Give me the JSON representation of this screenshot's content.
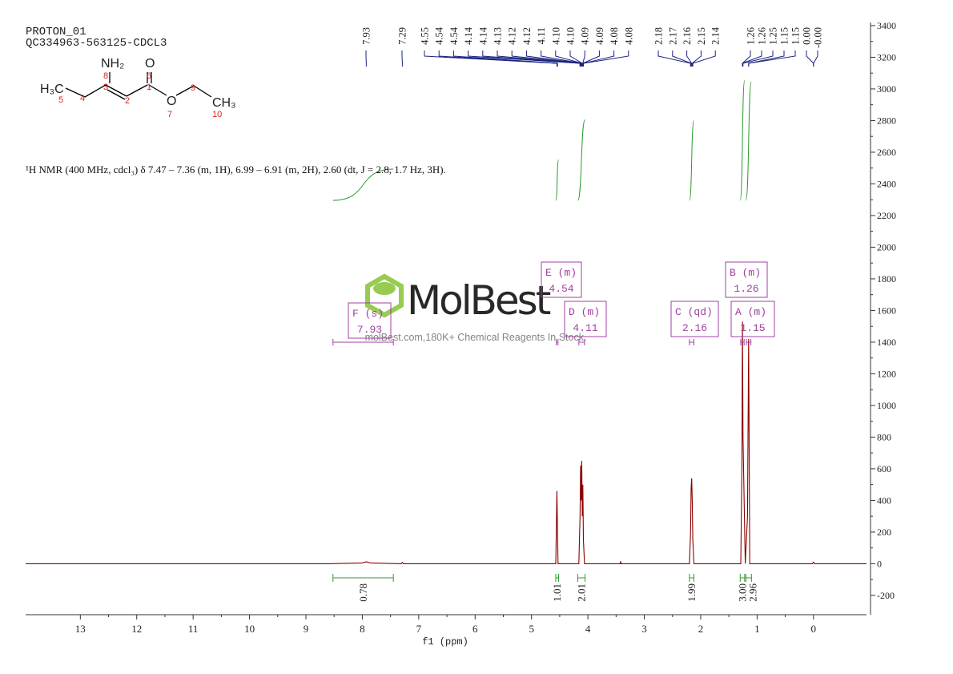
{
  "chart_data": {
    "type": "nmr",
    "title": "PROTON_01",
    "subtitle": "QC334963-563125-CDCL3",
    "annotation": "¹H NMR (400 MHz, cdcl₃) δ 7.47 – 7.36 (m, 1H), 6.99 – 6.91 (m, 2H), 2.60 (dt, J = 2.8, 1.7 Hz, 3H).",
    "xlabel": "f1 (ppm)",
    "xlim": [
      13.97,
      -0.94
    ],
    "xticks": [
      13,
      12,
      11,
      10,
      9,
      8,
      7,
      6,
      5,
      4,
      3,
      2,
      1,
      0
    ],
    "ylim": [
      -322,
      3420
    ],
    "yticks": [
      -200,
      0,
      200,
      400,
      600,
      800,
      1000,
      1200,
      1400,
      1600,
      1800,
      2000,
      2200,
      2400,
      2600,
      2800,
      3000,
      3200,
      3400
    ],
    "x": [
      13.97,
      8.6,
      8.0,
      7.93,
      7.86,
      7.31,
      7.29,
      7.27,
      4.57,
      4.55,
      4.53,
      4.16,
      4.14,
      4.13,
      4.12,
      4.11,
      4.1,
      4.09,
      4.08,
      4.06,
      3.43,
      3.42,
      3.41,
      2.2,
      2.18,
      2.17,
      2.16,
      2.15,
      2.14,
      2.12,
      1.29,
      1.27,
      1.26,
      1.25,
      1.21,
      1.17,
      1.15,
      1.13,
      0.02,
      0.0,
      -0.02,
      -0.94
    ],
    "series": [
      {
        "name": "spectrum",
        "color": "#8b0000",
        "values": [
          0,
          0,
          5,
          12,
          5,
          0,
          8,
          0,
          0,
          460,
          0,
          0,
          300,
          620,
          400,
          650,
          300,
          500,
          150,
          0,
          0,
          15,
          0,
          0,
          200,
          480,
          540,
          400,
          150,
          0,
          0,
          600,
          1530,
          800,
          0,
          300,
          1420,
          0,
          0,
          10,
          0,
          0
        ]
      }
    ],
    "peak_labels": [
      {
        "value": 7.93,
        "label": "7.93"
      },
      {
        "value": 7.29,
        "label": "7.29"
      },
      {
        "value": 4.55,
        "label": "4.55"
      },
      {
        "value": 4.54,
        "label": "4.54"
      },
      {
        "value": 4.54,
        "label": "4.54"
      },
      {
        "value": 4.14,
        "label": "4.14"
      },
      {
        "value": 4.14,
        "label": "4.14"
      },
      {
        "value": 4.13,
        "label": "4.13"
      },
      {
        "value": 4.12,
        "label": "4.12"
      },
      {
        "value": 4.12,
        "label": "4.12"
      },
      {
        "value": 4.11,
        "label": "4.11"
      },
      {
        "value": 4.1,
        "label": "4.10"
      },
      {
        "value": 4.1,
        "label": "4.10"
      },
      {
        "value": 4.09,
        "label": "4.09"
      },
      {
        "value": 4.09,
        "label": "4.09"
      },
      {
        "value": 4.08,
        "label": "4.08"
      },
      {
        "value": 4.08,
        "label": "4.08"
      },
      {
        "value": 2.18,
        "label": "2.18"
      },
      {
        "value": 2.17,
        "label": "2.17"
      },
      {
        "value": 2.16,
        "label": "2.16"
      },
      {
        "value": 2.15,
        "label": "2.15"
      },
      {
        "value": 2.14,
        "label": "2.14"
      },
      {
        "value": 1.26,
        "label": "1.26"
      },
      {
        "value": 1.26,
        "label": "1.26"
      },
      {
        "value": 1.25,
        "label": "1.25"
      },
      {
        "value": 1.15,
        "label": "1.15"
      },
      {
        "value": 1.15,
        "label": "1.15"
      },
      {
        "value": 0,
        "label": "0.00"
      },
      {
        "value": 0,
        "label": "-0.00"
      }
    ],
    "integrals": {
      "ranges": [
        [
          8.52,
          7.45
        ],
        [
          4.57,
          4.52
        ],
        [
          4.18,
          4.05
        ],
        [
          2.2,
          2.12
        ],
        [
          1.3,
          1.22
        ],
        [
          1.2,
          1.1
        ]
      ],
      "values": [
        0.78,
        1.01,
        2.01,
        1.99,
        3.0,
        2.96
      ],
      "value_labels": [
        "0.78",
        "1.01",
        "2.01",
        "1.99",
        "3.00",
        "2.96"
      ],
      "color": "#2e9a2e"
    },
    "multiplets": {
      "color": "#a040a0",
      "names": [
        "F (s)",
        "E (m)",
        "D (m)",
        "C (qd)",
        "B (m)",
        "A (m)"
      ],
      "shifts": [
        7.93,
        4.54,
        4.11,
        2.16,
        1.26,
        1.15
      ],
      "ranges": [
        [
          8.52,
          7.45
        ],
        [
          4.56,
          4.53
        ],
        [
          4.16,
          4.06
        ],
        [
          2.2,
          2.12
        ],
        [
          1.29,
          1.23
        ],
        [
          1.19,
          1.11
        ]
      ]
    }
  },
  "structure": {
    "atoms": [
      "NH₂",
      "O",
      "H₃C",
      "O",
      "CH₃"
    ],
    "numbers": [
      "8",
      "6",
      "3",
      "1",
      "5",
      "4",
      "2",
      "7",
      "9",
      "10"
    ]
  },
  "watermark": {
    "logo": "MolBest",
    "text": "molBest.com,180K+ Chemical Reagents In Stock."
  }
}
